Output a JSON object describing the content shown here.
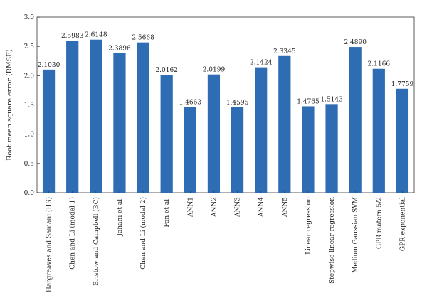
{
  "chart_data": {
    "type": "bar",
    "title": "",
    "xlabel": "",
    "ylabel": "Root mean square error (RMSE)",
    "ylim": [
      0,
      3.0
    ],
    "yticks": [
      "0.0",
      "0.5",
      "1.0",
      "1.5",
      "2.0",
      "2.5",
      "3.0"
    ],
    "grid": false,
    "bar_color": "#2e6db4",
    "categories": [
      "Hargreaves and Samani (HS)",
      "Chen and Li (model 1)",
      "Bristow and Campbell (BC)",
      "Jahani et al.",
      "Chen and Li (model 2)",
      "Fan et al.",
      "ANN1",
      "ANN2",
      "ANN3",
      "ANN4",
      "ANN5",
      "Linear regression",
      "Stepwise linear regression",
      "Medium Gaussian SVM",
      "GPR matern 5/2",
      "GPR exponential"
    ],
    "values": [
      2.103,
      2.5983,
      2.6148,
      2.3896,
      2.5668,
      2.0162,
      1.4663,
      2.0199,
      1.4595,
      2.1424,
      2.3345,
      1.4765,
      1.5143,
      2.489,
      2.1166,
      1.7759
    ],
    "value_labels": [
      "2.1030",
      "2.5983",
      "2.6148",
      "2.3896",
      "2.5668",
      "2.0162",
      "1.4663",
      "2.0199",
      "1.4595",
      "2.1424",
      "2.3345",
      "1.4765",
      "1.5143",
      "2.4890",
      "2.1166",
      "1.7759"
    ]
  }
}
